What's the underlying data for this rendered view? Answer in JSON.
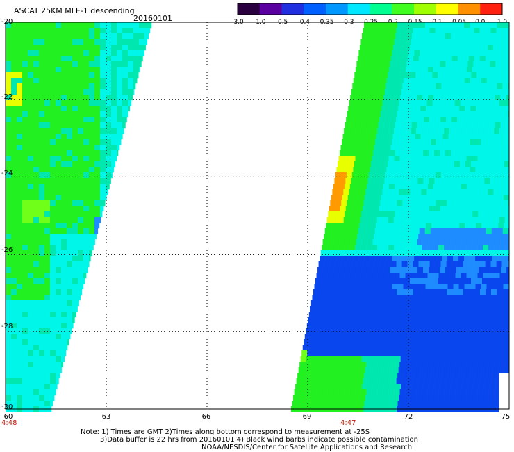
{
  "header": {
    "title": "ASCAT 25KM MLE-1 descending",
    "date": "20160101"
  },
  "colorbar": {
    "tick_labels": [
      "-3.0",
      "-1.0",
      "-0.5",
      "-0.4",
      "-0.35",
      "-0.3",
      "-0.25",
      "-0.2",
      "-0.15",
      "-0.1",
      "-0.05",
      "0.0",
      "1.0"
    ],
    "colors": [
      "#2a0040",
      "#5a00a0",
      "#2030e0",
      "#0060ff",
      "#0098ff",
      "#00e8ff",
      "#00ff90",
      "#40ff20",
      "#a0ff00",
      "#ffff00",
      "#ff9000",
      "#ff2010"
    ]
  },
  "map": {
    "y_ticks": [
      "-20",
      "-22",
      "-24",
      "-26",
      "-28",
      "-30"
    ],
    "x_ticks": [
      "60",
      "63",
      "66",
      "69",
      "72",
      "75"
    ],
    "lat_range": [
      -30,
      -20
    ],
    "lon_range": [
      60,
      75
    ],
    "swath_times": [
      "4:48",
      "4:47"
    ],
    "palette": {
      "blue": "#0a46ee",
      "lightblue": "#1e8cff",
      "cyan": "#00f6e8",
      "teal": "#00e8b0",
      "green": "#22f020",
      "lime": "#70ff18",
      "yellow": "#e8ff00",
      "orange": "#ff9a00"
    }
  },
  "notes": {
    "line1": "Note: 1) Times are GMT 2)Times along bottom correspond to measurement at -25S",
    "line2": "3)Data buffer is 22 hrs from 20160101 4) Black wind barbs indicate possible contamination",
    "line3": "NOAA/NESDIS/Center for Satellite Applications and Research"
  }
}
